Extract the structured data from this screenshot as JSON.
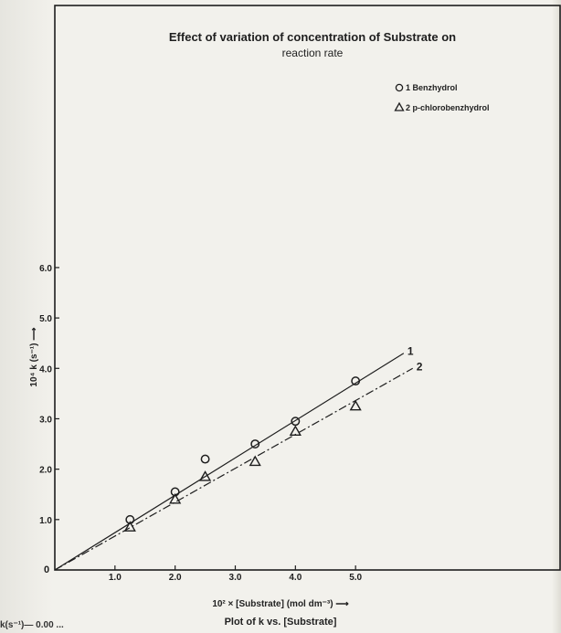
{
  "chart_data": {
    "type": "scatter",
    "title_line1": "Effect of variation of concentration of Substrate on",
    "title_line2": "reaction rate",
    "xlabel": "10² × [Substrate] (mol dm⁻³) ⟶",
    "ylabel": "10⁴ k (s⁻¹) ⟶",
    "caption": "Plot of k vs. [Substrate]",
    "caption_fragment": "k(s⁻¹)— 0.00 ...",
    "origin_label": "0",
    "xlim": [
      0,
      8.4
    ],
    "ylim": [
      0,
      11.2
    ],
    "x_ticks": [
      1.0,
      2.0,
      3.0,
      4.0,
      5.0
    ],
    "x_tick_labels": [
      "1.0",
      "2.0",
      "3.0",
      "4.0",
      "5.0"
    ],
    "y_ticks": [
      1.0,
      2.0,
      3.0,
      4.0,
      5.0,
      6.0
    ],
    "y_tick_labels": [
      "1.0",
      "2.0",
      "3.0",
      "4.0",
      "5.0",
      "6.0"
    ],
    "grid": false,
    "legend_placement": "top-right",
    "legend": [
      {
        "marker": "circle",
        "text": "1 Benzhydrol"
      },
      {
        "marker": "triangle",
        "text": "2 p-chlorobenzhydrol"
      }
    ],
    "series": [
      {
        "name": "Benzhydrol",
        "line_label": "1",
        "marker": "circle",
        "x": [
          1.25,
          2.0,
          2.5,
          3.33,
          4.0,
          5.0
        ],
        "y": [
          1.0,
          1.55,
          2.2,
          2.5,
          2.95,
          3.75
        ],
        "line": {
          "x": [
            0,
            5.8
          ],
          "y": [
            0,
            4.3
          ]
        }
      },
      {
        "name": "p-chlorobenzhydrol",
        "line_label": "2",
        "marker": "triangle",
        "x": [
          1.25,
          2.0,
          2.5,
          3.33,
          4.0,
          5.0
        ],
        "y": [
          0.85,
          1.4,
          1.85,
          2.15,
          2.75,
          3.25
        ],
        "line": {
          "x": [
            0,
            5.95
          ],
          "y": [
            0,
            4.0
          ]
        }
      }
    ]
  },
  "colors": {
    "ink": "#1e1e1e",
    "paper": "#f2f1ec"
  }
}
